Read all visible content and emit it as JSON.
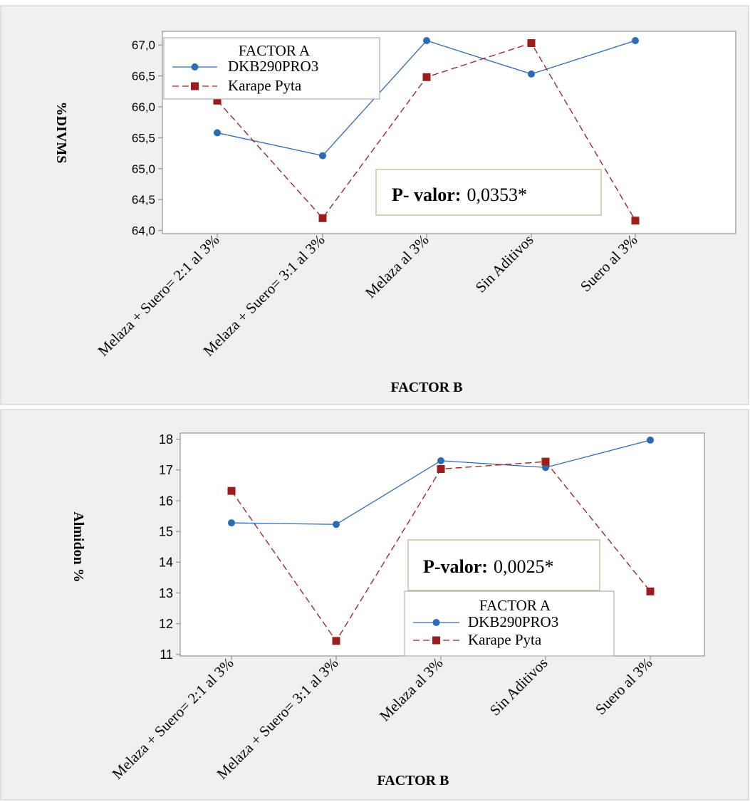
{
  "colors": {
    "panel_bg": "#f0f0f0",
    "panel_border": "#c8c8c8",
    "plot_bg": "#ffffff",
    "axis": "#808080",
    "series_1": "#2d6bb3",
    "series_2": "#9b1c1c",
    "box_border": "#c8c2a0"
  },
  "chart_data": [
    {
      "type": "line",
      "ylabel": "%DIVMS",
      "xlabel": "FACTOR B",
      "categories": [
        "Melaza + Suero= 2:1 al 3%",
        "Melaza + Suero= 3:1 al 3%",
        "Melaza al 3%",
        "Sin Aditivos",
        "Suero al 3%"
      ],
      "yticks": [
        "64,0",
        "64,5",
        "65,0",
        "65,5",
        "66,0",
        "66,5",
        "67,0"
      ],
      "ylim": [
        63.95,
        67.22
      ],
      "series": [
        {
          "name": "DKB290PRO3",
          "values": [
            65.58,
            65.21,
            67.07,
            66.53,
            67.07
          ],
          "marker": "circle",
          "line": "solid"
        },
        {
          "name": "Karape Pyta",
          "values": [
            66.1,
            64.2,
            66.48,
            67.03,
            64.16
          ],
          "marker": "square",
          "line": "dashed"
        }
      ],
      "legend": {
        "title": "FACTOR A",
        "position": "top-left"
      },
      "annotation": {
        "label": "P- valor:",
        "value": "0,0353*"
      },
      "grid": false
    },
    {
      "type": "line",
      "ylabel": "Almidon %",
      "xlabel": "FACTOR B",
      "categories": [
        "Melaza + Suero= 2:1 al 3%",
        "Melaza + Suero= 3:1 al 3%",
        "Melaza al 3%",
        "Sin Aditivos",
        "Suero al 3%"
      ],
      "yticks": [
        "11",
        "12",
        "13",
        "14",
        "15",
        "16",
        "17",
        "18"
      ],
      "ylim": [
        10.95,
        18.2
      ],
      "series": [
        {
          "name": "DKB290PRO3",
          "values": [
            15.28,
            15.23,
            17.3,
            17.08,
            17.97
          ],
          "marker": "circle",
          "line": "solid"
        },
        {
          "name": "Karape Pyta",
          "values": [
            16.32,
            11.44,
            17.03,
            17.27,
            13.05
          ],
          "marker": "square",
          "line": "dashed"
        }
      ],
      "legend": {
        "title": "FACTOR A",
        "position": "bottom-right"
      },
      "annotation": {
        "label": "P-valor:",
        "value": "0,0025*"
      },
      "grid": false
    }
  ]
}
